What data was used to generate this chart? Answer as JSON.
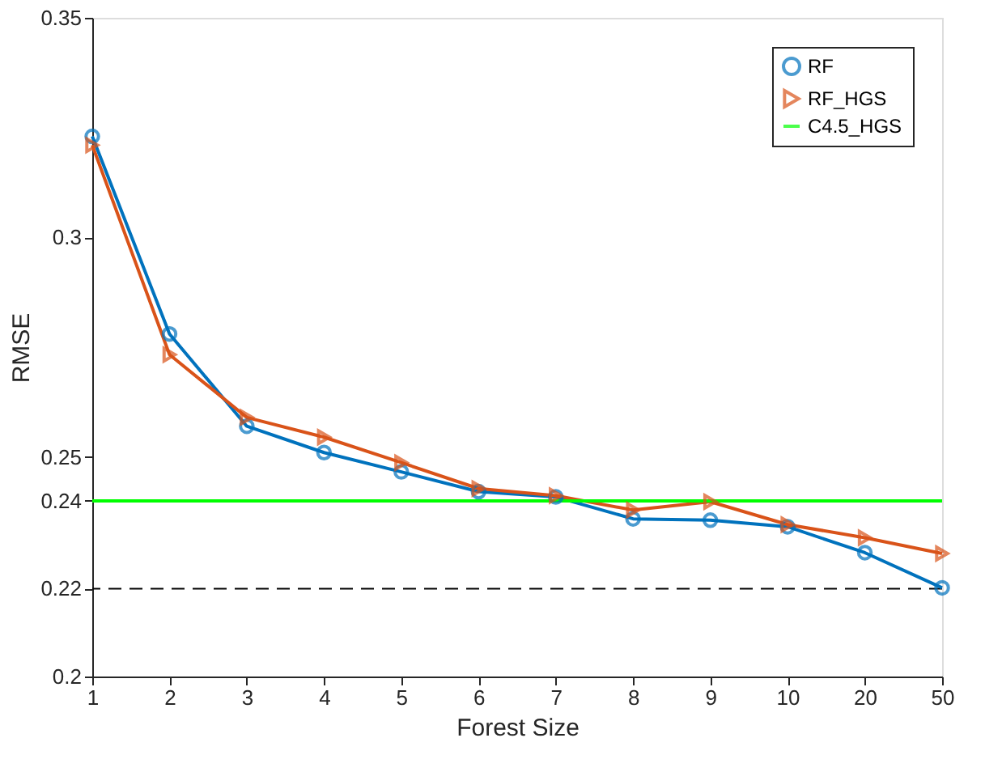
{
  "chart_data": {
    "type": "line",
    "xlabel": "Forest Size",
    "ylabel": "RMSE",
    "categories": [
      "1",
      "2",
      "3",
      "4",
      "5",
      "6",
      "7",
      "8",
      "9",
      "10",
      "20",
      "50"
    ],
    "series": [
      {
        "name": "RF",
        "color": "#0072bd",
        "marker": "circle",
        "values": [
          0.323,
          0.278,
          0.257,
          0.251,
          0.2466,
          0.2421,
          0.2409,
          0.2359,
          0.2356,
          0.2341,
          0.2282,
          0.2202
        ]
      },
      {
        "name": "RF_HGS",
        "color": "#d95319",
        "marker": "triangle",
        "values": [
          0.321,
          0.2733,
          0.259,
          0.2545,
          0.2487,
          0.2428,
          0.2412,
          0.2379,
          0.2398,
          0.2346,
          0.2316,
          0.228
        ]
      },
      {
        "name": "C4.5_HGS",
        "color": "#00ff00",
        "marker": "none",
        "values": [
          0.24,
          0.24,
          0.24,
          0.24,
          0.24,
          0.24,
          0.24,
          0.24,
          0.24,
          0.24,
          0.24,
          0.24
        ]
      }
    ],
    "ylim": [
      0.2,
      0.35
    ],
    "yticks": [
      0.2,
      0.22,
      0.24,
      0.25,
      0.3,
      0.35
    ],
    "ref_lines": [
      {
        "axis": "y",
        "value": 0.22,
        "color": "#000000",
        "line_style": "dashed"
      }
    ],
    "grid": false,
    "legend": "top right",
    "line_style": "solid"
  }
}
